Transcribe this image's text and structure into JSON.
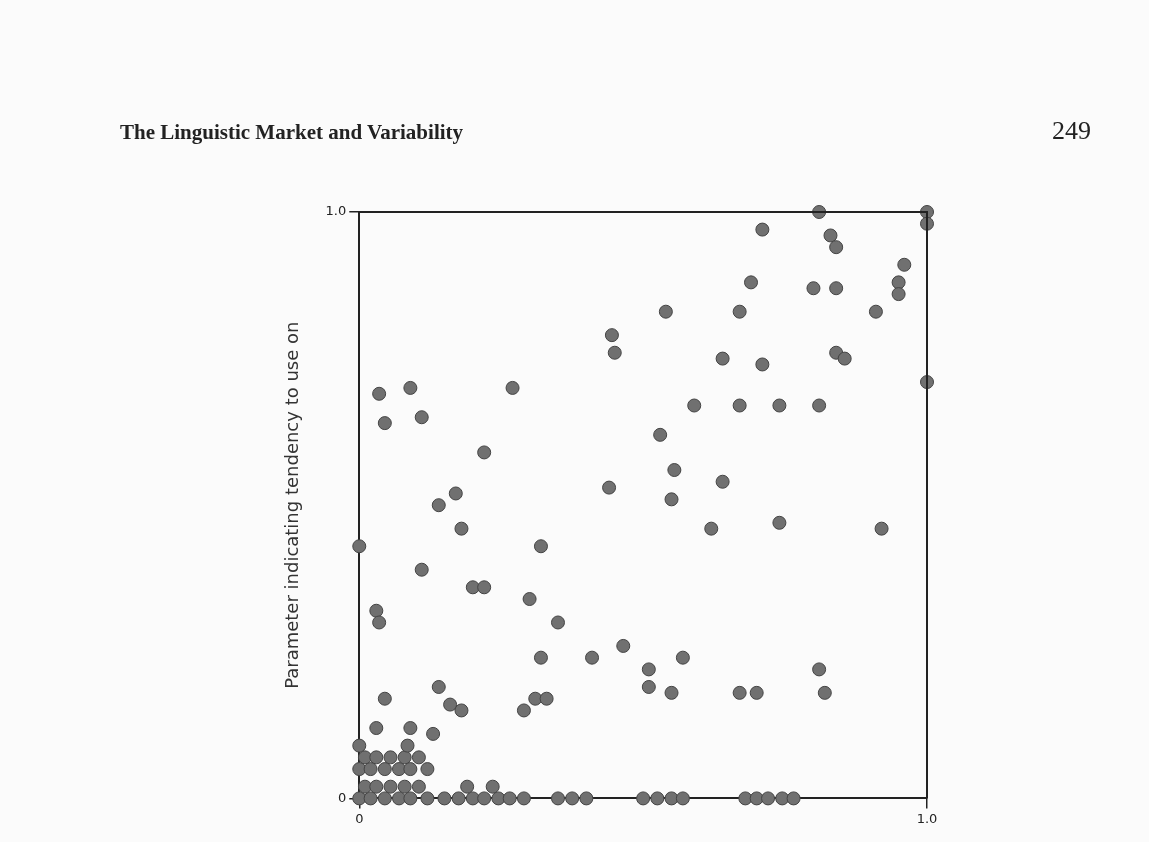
{
  "chart_data": {
    "type": "scatter",
    "title": "The Linguistic Market and Variability",
    "ylabel": "Parameter indicating tendency to use on",
    "annotations": [
      "249"
    ],
    "xlim": [
      0,
      1
    ],
    "ylim": [
      0,
      1
    ],
    "xticks": [
      0,
      {
        "value": 1,
        "label": "1.0"
      }
    ],
    "yticks": [
      0,
      {
        "value": 1,
        "label": "1.0"
      }
    ],
    "grid": false,
    "marker": "circle",
    "series": [
      {
        "color": "#707070",
        "x": [
          0,
          0.02,
          0.045,
          0.07,
          0.09,
          0.12,
          0.15,
          0.175,
          0.2,
          0.22,
          0.245,
          0.265,
          0.29,
          0.35,
          0.375,
          0.4,
          0.5,
          0.525,
          0.55,
          0.57,
          0.68,
          0.7,
          0.72,
          0.745,
          0.765,
          0.01,
          0.03,
          0.055,
          0.08,
          0.105,
          0.19,
          0.235,
          0,
          0.02,
          0.045,
          0.07,
          0.09,
          0.12,
          0.01,
          0.03,
          0.055,
          0.08,
          0.105,
          0,
          0.085,
          0.09,
          0.13,
          0.03,
          0.16,
          0.18,
          0.14,
          0.045,
          0.29,
          0.31,
          0.33,
          0.32,
          0.445,
          0.45,
          0.035,
          0.09,
          0.27,
          0.045,
          0.11,
          0.22,
          0.17,
          0.14,
          0.44,
          0.18,
          0,
          0.32,
          0.11,
          0.2,
          0.22,
          0.3,
          0.03,
          0.035,
          0.35,
          0.465,
          0.41,
          0.81,
          1,
          1,
          0.71,
          0.83,
          0.84,
          0.96,
          0.69,
          0.95,
          0.95,
          0.8,
          0.84,
          0.54,
          0.67,
          0.91,
          0.84,
          0.855,
          0.64,
          0.71,
          1,
          0.59,
          0.67,
          0.74,
          0.81,
          0.53,
          0.555,
          0.64,
          0.55,
          0.62,
          0.74,
          0.92,
          0.57,
          0.51,
          0.51,
          0.55,
          0.67,
          0.7,
          0.81,
          0.82
        ],
        "values": [
          0,
          0,
          0,
          0,
          0,
          0,
          0,
          0,
          0,
          0,
          0,
          0,
          0,
          0,
          0,
          0,
          0,
          0,
          0,
          0,
          0,
          0,
          0,
          0,
          0,
          0.02,
          0.02,
          0.02,
          0.02,
          0.02,
          0.02,
          0.02,
          0.05,
          0.05,
          0.05,
          0.05,
          0.05,
          0.05,
          0.07,
          0.07,
          0.07,
          0.07,
          0.07,
          0.09,
          0.09,
          0.12,
          0.11,
          0.12,
          0.16,
          0.15,
          0.19,
          0.17,
          0.15,
          0.17,
          0.17,
          0.24,
          0.79,
          0.76,
          0.69,
          0.7,
          0.7,
          0.64,
          0.65,
          0.59,
          0.52,
          0.5,
          0.53,
          0.46,
          0.43,
          0.43,
          0.39,
          0.36,
          0.36,
          0.34,
          0.32,
          0.3,
          0.3,
          0.26,
          0.24,
          1,
          1,
          0.98,
          0.97,
          0.96,
          0.94,
          0.91,
          0.88,
          0.88,
          0.86,
          0.87,
          0.87,
          0.83,
          0.83,
          0.83,
          0.76,
          0.75,
          0.75,
          0.74,
          0.71,
          0.67,
          0.67,
          0.67,
          0.67,
          0.62,
          0.56,
          0.54,
          0.51,
          0.46,
          0.47,
          0.46,
          0.24,
          0.22,
          0.19,
          0.18,
          0.18,
          0.18,
          0.22,
          0.18
        ]
      }
    ]
  }
}
